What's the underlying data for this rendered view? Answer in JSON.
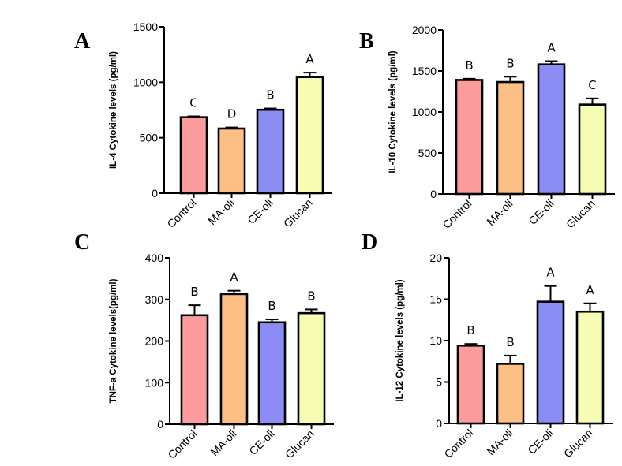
{
  "chart_data": [
    {
      "type": "bar",
      "panel": "A",
      "categories": [
        "Control",
        "MA-oli",
        "CE-oli",
        "Glucan"
      ],
      "values": [
        685,
        583,
        752,
        1047
      ],
      "errors": [
        8,
        10,
        12,
        40
      ],
      "significance": [
        "C",
        "D",
        "B",
        "A"
      ],
      "colors": [
        "#fc9c9c",
        "#fcbf86",
        "#8b8cf4",
        "#f6fcb4"
      ],
      "title": "",
      "xlabel": "",
      "ylabel": "IL-4 Cytokine levels (pg/ml)",
      "ylim": [
        0,
        1500
      ],
      "yticks": [
        0,
        500,
        1000,
        1500
      ]
    },
    {
      "type": "bar",
      "panel": "B",
      "categories": [
        "Control",
        "MA-oli",
        "CE-oli",
        "Glucan"
      ],
      "values": [
        1390,
        1365,
        1580,
        1090
      ],
      "errors": [
        15,
        65,
        40,
        75
      ],
      "significance": [
        "B",
        "B",
        "A",
        "C"
      ],
      "colors": [
        "#fc9c9c",
        "#fcbf86",
        "#8b8cf4",
        "#f6fcb4"
      ],
      "title": "",
      "xlabel": "",
      "ylabel": "IL-10  Cytokine levels (pg/ml)",
      "ylim": [
        0,
        2000
      ],
      "yticks": [
        0,
        500,
        1000,
        1500,
        2000
      ]
    },
    {
      "type": "bar",
      "panel": "C",
      "categories": [
        "Control",
        "MA-oli",
        "CE-oli",
        "Glucan"
      ],
      "values": [
        262,
        313,
        245,
        267
      ],
      "errors": [
        24,
        8,
        7,
        9
      ],
      "significance": [
        "B",
        "A",
        "B",
        "B"
      ],
      "colors": [
        "#fc9c9c",
        "#fcbf86",
        "#8b8cf4",
        "#f6fcb4"
      ],
      "title": "",
      "xlabel": "",
      "ylabel": "TNF-a  Cytokine levels(pg/ml)",
      "ylim": [
        0,
        400
      ],
      "yticks": [
        0,
        100,
        200,
        300,
        400
      ]
    },
    {
      "type": "bar",
      "panel": "D",
      "categories": [
        "Control",
        "MA-oli",
        "CE-oli",
        "Glucan"
      ],
      "values": [
        9.4,
        7.2,
        14.7,
        13.5
      ],
      "errors": [
        0.2,
        1.0,
        1.9,
        1.0
      ],
      "significance": [
        "B",
        "B",
        "A",
        "A"
      ],
      "colors": [
        "#fc9c9c",
        "#fcbf86",
        "#8b8cf4",
        "#f6fcb4"
      ],
      "title": "",
      "xlabel": "",
      "ylabel": "IL-12  Cytokine levels (pg/ml)",
      "ylim": [
        0,
        20
      ],
      "yticks": [
        0,
        5,
        10,
        15,
        20
      ]
    }
  ]
}
